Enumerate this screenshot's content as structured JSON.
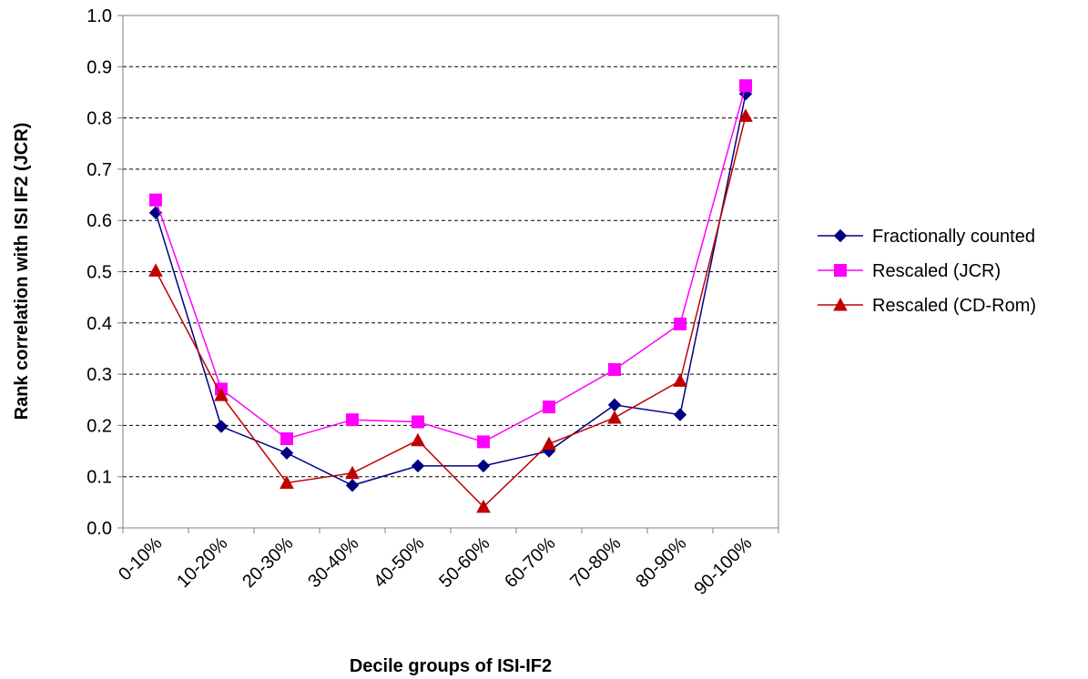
{
  "chart_data": {
    "type": "line",
    "xlabel": "Decile groups of ISI-IF2",
    "ylabel": "Rank correlation with ISI IF2 (JCR)",
    "categories": [
      "0-10%",
      "10-20%",
      "20-30%",
      "30-40%",
      "40-50%",
      "50-60%",
      "60-70%",
      "70-80%",
      "80-90%",
      "90-100%"
    ],
    "ylim": [
      0.0,
      1.0
    ],
    "yticks": [
      "0.0",
      "0.1",
      "0.2",
      "0.3",
      "0.4",
      "0.5",
      "0.6",
      "0.7",
      "0.8",
      "0.9",
      "1.0"
    ],
    "grid": "horizontal dashed",
    "legend_position": "right",
    "series": [
      {
        "name": "Fractionally counted",
        "color": "#000080",
        "marker": "diamond",
        "values": [
          0.615,
          0.198,
          0.146,
          0.083,
          0.121,
          0.121,
          0.15,
          0.24,
          0.221,
          0.847
        ]
      },
      {
        "name": "Rescaled (JCR)",
        "color": "#ff00ff",
        "marker": "square",
        "values": [
          0.64,
          0.271,
          0.174,
          0.211,
          0.207,
          0.168,
          0.236,
          0.309,
          0.398,
          0.863
        ]
      },
      {
        "name": "Rescaled (CD-Rom)",
        "color": "#c00000",
        "marker": "triangle",
        "values": [
          0.502,
          0.259,
          0.088,
          0.107,
          0.171,
          0.041,
          0.164,
          0.215,
          0.287,
          0.804
        ]
      }
    ]
  }
}
